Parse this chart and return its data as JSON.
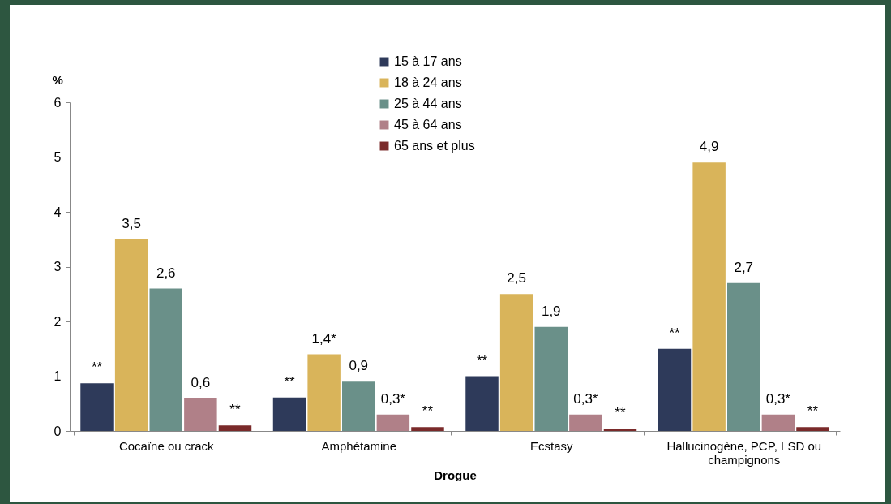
{
  "chart_data": {
    "type": "bar",
    "categories": [
      "Cocaïne ou crack",
      "Amphétamine",
      "Ecstasy",
      "Hallucinogène, PCP, LSD ou champignons"
    ],
    "xlabel": "Drogue",
    "ylabel": "%",
    "ylim": [
      0,
      6
    ],
    "yticks": [
      0,
      1,
      2,
      3,
      4,
      5,
      6
    ],
    "grid": false,
    "legend": "top",
    "series": [
      {
        "name": "15 à 17 ans",
        "color": "#2e3a5a",
        "values": [
          0.87,
          0.61,
          1.0,
          1.5
        ],
        "value_labels": [
          "**",
          "**",
          "**",
          "**"
        ]
      },
      {
        "name": "18 à 24 ans",
        "color": "#d9b45a",
        "values": [
          3.5,
          1.4,
          2.5,
          4.9
        ],
        "value_labels": [
          "3,5",
          "1,4*",
          "2,5",
          "4,9"
        ]
      },
      {
        "name": "25 à 44 ans",
        "color": "#6a9089",
        "values": [
          2.6,
          0.9,
          1.9,
          2.7
        ],
        "value_labels": [
          "2,6",
          "0,9",
          "1,9",
          "2,7"
        ]
      },
      {
        "name": "45 à 64 ans",
        "color": "#b08088",
        "values": [
          0.6,
          0.3,
          0.3,
          0.3
        ],
        "value_labels": [
          "0,6",
          "0,3*",
          "0,3*",
          "0,3*"
        ]
      },
      {
        "name": "65 ans et plus",
        "color": "#7a2a2a",
        "values": [
          0.1,
          0.07,
          0.04,
          0.07
        ],
        "value_labels": [
          "**",
          "**",
          "**",
          "**"
        ]
      }
    ]
  }
}
